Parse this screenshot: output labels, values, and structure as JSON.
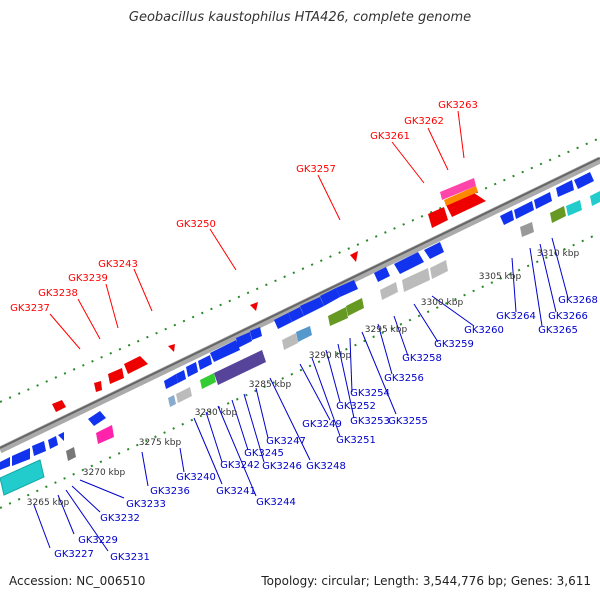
{
  "title": "Geobacillus kaustophilus HTA426, complete genome",
  "accession": "Accession: NC_006510",
  "summary": "Topology: circular; Length: 3,544,776 bp; Genes: 3,611",
  "scale_labels": [
    "3265 kbp",
    "3270 kbp",
    "3275 kbp",
    "3280 kbp",
    "3285 kbp",
    "3290 kbp",
    "3295 kbp",
    "3300 kbp",
    "3305 kbp",
    "3310 kbp"
  ],
  "forward_genes": [
    "GK3237",
    "GK3238",
    "GK3239",
    "GK3243",
    "GK3250",
    "GK3257",
    "GK3261",
    "GK3262",
    "GK3263"
  ],
  "reverse_genes": [
    "GK3227",
    "GK3229",
    "GK3231",
    "GK3232",
    "GK3233",
    "GK3236",
    "GK3240",
    "GK3241",
    "GK3242",
    "GK3244",
    "GK3245",
    "GK3246",
    "GK3247",
    "GK3248",
    "GK3249",
    "GK3251",
    "GK3252",
    "GK3253",
    "GK3254",
    "GK3255",
    "GK3256",
    "GK3258",
    "GK3259",
    "GK3260",
    "GK3264",
    "GK3265",
    "GK3266",
    "GK3268"
  ],
  "colors": {
    "forward": "#ff0000",
    "reverse": "#0000cc",
    "backbone": "#999999",
    "ticks": "#228822"
  }
}
